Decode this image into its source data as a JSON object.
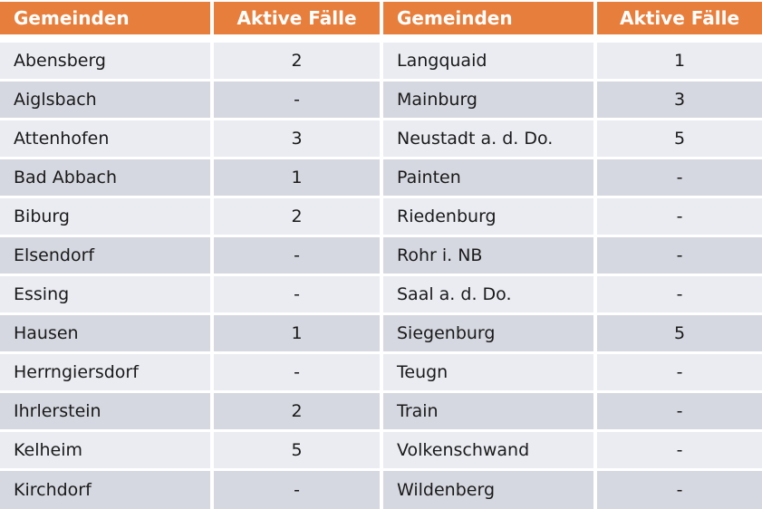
{
  "chart_data": {
    "type": "table",
    "columns": [
      "Gemeinden",
      "Aktive Fälle",
      "Gemeinden",
      "Aktive Fälle"
    ],
    "rows": [
      [
        "Abensberg",
        "2",
        "Langquaid",
        "1"
      ],
      [
        "Aiglsbach",
        "-",
        "Mainburg",
        "3"
      ],
      [
        "Attenhofen",
        "3",
        "Neustadt a. d. Do.",
        "5"
      ],
      [
        "Bad Abbach",
        "1",
        "Painten",
        "-"
      ],
      [
        "Biburg",
        "2",
        "Riedenburg",
        "-"
      ],
      [
        "Elsendorf",
        "-",
        "Rohr i. NB",
        "-"
      ],
      [
        "Essing",
        "-",
        "Saal a. d. Do.",
        "-"
      ],
      [
        "Hausen",
        "1",
        "Siegenburg",
        "5"
      ],
      [
        "Herrngiersdorf",
        "-",
        "Teugn",
        "-"
      ],
      [
        "Ihrlerstein",
        "2",
        "Train",
        "-"
      ],
      [
        "Kelheim",
        "5",
        "Volkenschwand",
        "-"
      ],
      [
        "Kirchdorf",
        "-",
        "Wildenberg",
        "-"
      ]
    ],
    "layout": {
      "banded_rows": true,
      "header_position": "top",
      "value_columns_centered": true
    }
  },
  "colors": {
    "header_bg": "#E87E3B",
    "header_text": "#FFFFFF",
    "band_dark": "#D5D8E0",
    "band_light": "#EAECF1",
    "body_text": "#1A1A1A",
    "gap": "#FFFFFF"
  }
}
